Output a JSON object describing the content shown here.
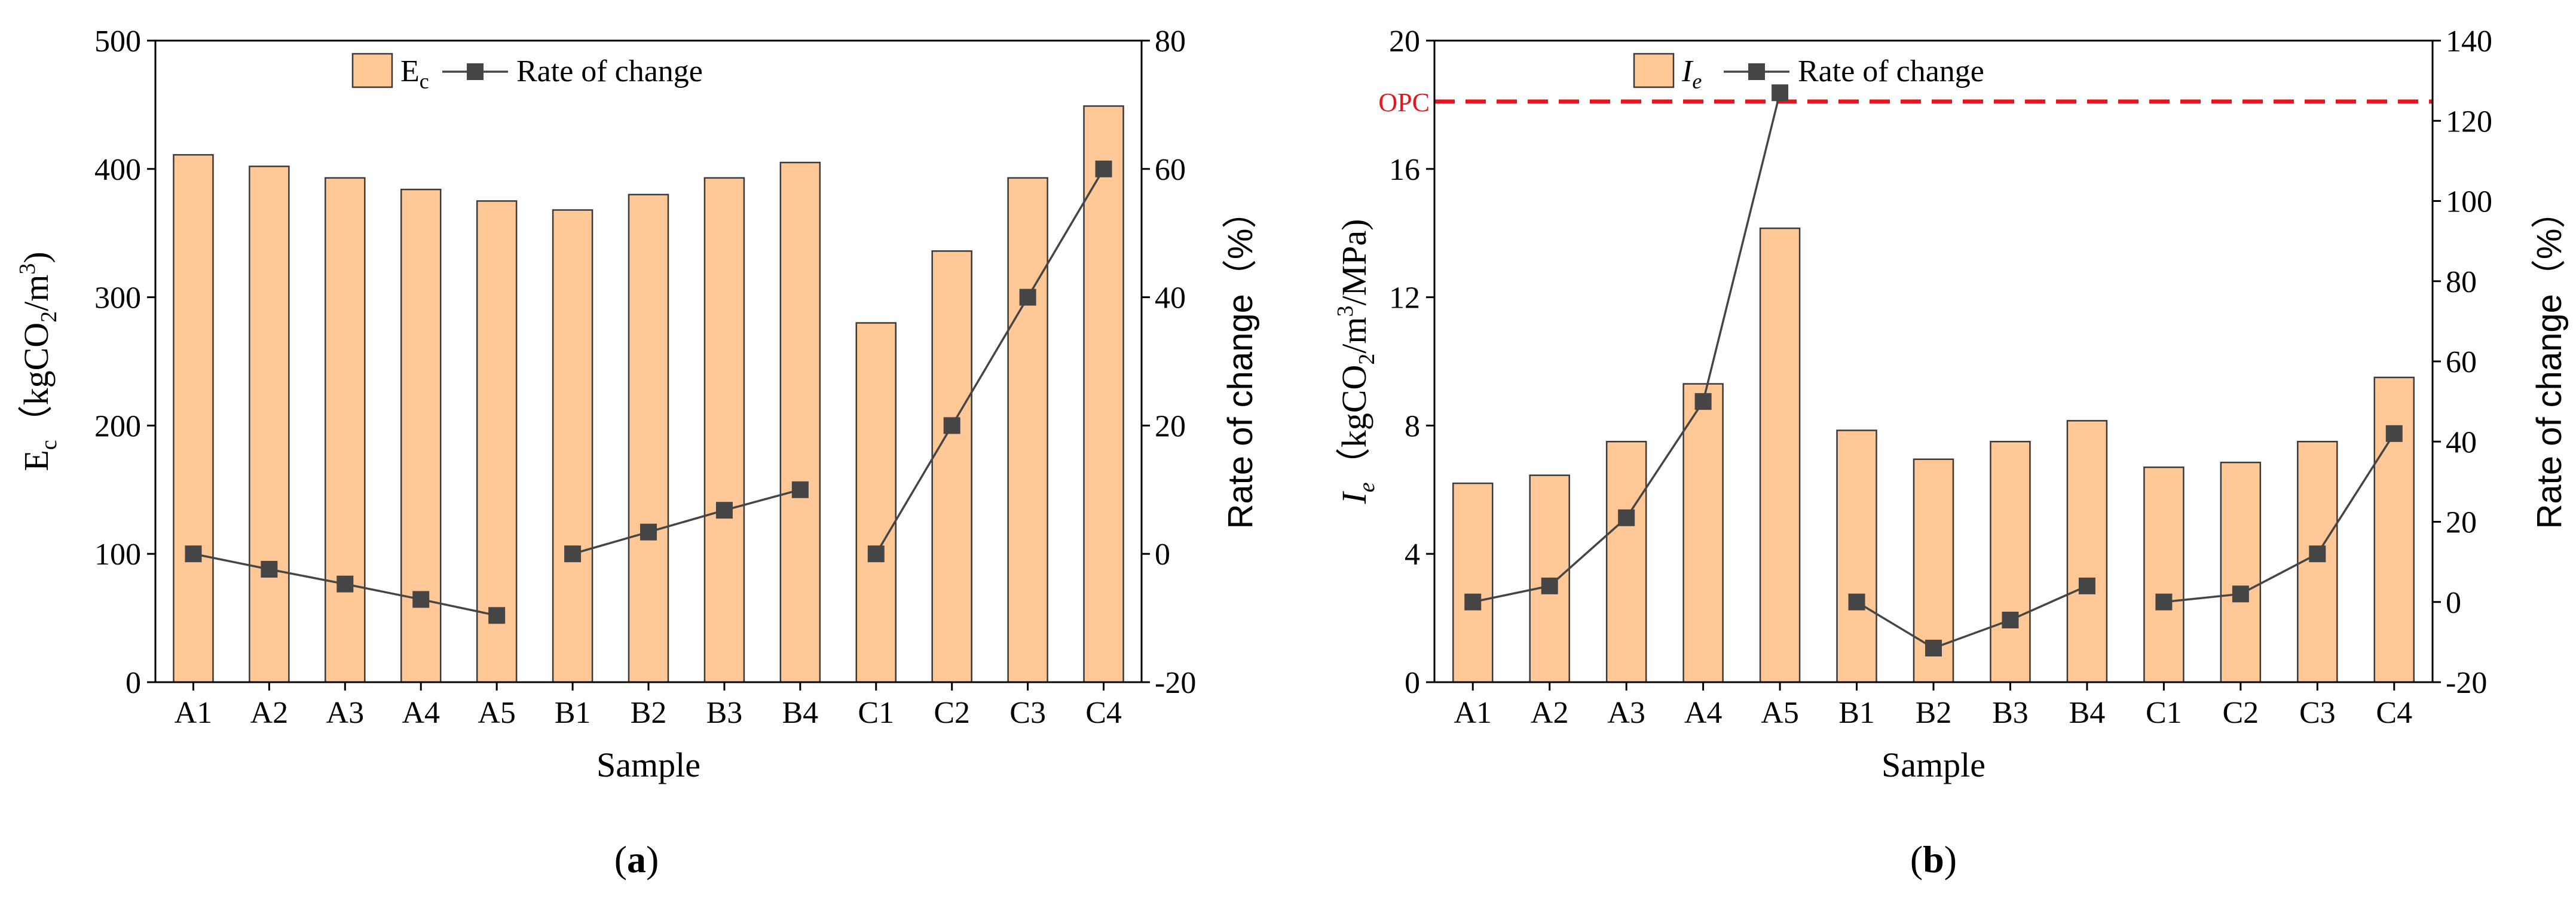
{
  "colors": {
    "bar_fill": "#FFC896",
    "bar_stroke": "#3a3a3a",
    "line": "#454545",
    "marker": "#454545",
    "axis": "#000000",
    "opc_line": "#E8141E",
    "opc_label": "#E8141E"
  },
  "chart_data": [
    {
      "type": "bar+line",
      "panel_label": "a",
      "categories": [
        "A1",
        "A2",
        "A3",
        "A4",
        "A5",
        "B1",
        "B2",
        "B3",
        "B4",
        "C1",
        "C2",
        "C3",
        "C4"
      ],
      "series": [
        {
          "name": "Ec",
          "legend_label": "E",
          "legend_sub": "c",
          "type": "bar",
          "axis": "left",
          "values": [
            411,
            402,
            393,
            384,
            375,
            368,
            380,
            393,
            405,
            280,
            336,
            393,
            449
          ]
        },
        {
          "name": "Rate of change",
          "legend_label": "Rate of change",
          "type": "line",
          "axis": "right",
          "values": [
            0,
            -2.4,
            -4.7,
            -7.1,
            -9.6,
            0,
            3.4,
            6.8,
            10.0,
            0,
            20.0,
            40.0,
            60.0
          ],
          "segments": [
            [
              0,
              4
            ],
            [
              5,
              8
            ],
            [
              9,
              12
            ]
          ]
        }
      ],
      "xlabel": "Sample",
      "ylabel_left": {
        "main": "E",
        "sub1": "c",
        "paren_open": "（",
        "unit_a": "kgCO",
        "sub2": "2",
        "unit_b": "/m",
        "sup": "3",
        "paren_close": ")"
      },
      "ylabel_right": "Rate of change（%）",
      "ylim_left": [
        0,
        500
      ],
      "yticks_left": [
        0,
        100,
        200,
        300,
        400,
        500
      ],
      "ylim_right": [
        -20,
        80
      ],
      "yticks_right": [
        -20,
        0,
        20,
        40,
        60,
        80
      ],
      "legend_position": "top-center",
      "grid": false
    },
    {
      "type": "bar+line",
      "panel_label": "b",
      "categories": [
        "A1",
        "A2",
        "A3",
        "A4",
        "A5",
        "B1",
        "B2",
        "B3",
        "B4",
        "C1",
        "C2",
        "C3",
        "C4"
      ],
      "series": [
        {
          "name": "Ie",
          "legend_label": "I",
          "legend_sub": "e",
          "type": "bar",
          "axis": "left",
          "values": [
            6.2,
            6.45,
            7.5,
            9.3,
            14.15,
            7.85,
            6.95,
            7.5,
            8.15,
            6.7,
            6.85,
            7.5,
            9.5
          ]
        },
        {
          "name": "Rate of change",
          "legend_label": "Rate of change",
          "type": "line",
          "axis": "right",
          "values": [
            0,
            4,
            21,
            50,
            127,
            0,
            -11.5,
            -4.5,
            4,
            0,
            2,
            12,
            42
          ],
          "segments": [
            [
              0,
              4
            ],
            [
              5,
              8
            ],
            [
              9,
              12
            ]
          ]
        }
      ],
      "reference_line": {
        "label": "OPC",
        "value": 18.1,
        "axis": "left",
        "style": "dashed"
      },
      "xlabel": "Sample",
      "ylabel_left": {
        "main": "I",
        "sub1": "e",
        "paren_open": "（",
        "unit_a": "kgCO",
        "sub2": "2",
        "unit_b": "/m",
        "sup": "3",
        "unit_c": "/MPa",
        "paren_close": ")"
      },
      "ylabel_right": "Rate of change（%）",
      "ylim_left": [
        0,
        20
      ],
      "yticks_left": [
        0,
        4,
        8,
        12,
        16,
        20
      ],
      "ylim_right": [
        -20,
        140
      ],
      "yticks_right": [
        -20,
        0,
        20,
        40,
        60,
        80,
        100,
        120,
        140
      ],
      "legend_position": "top-center",
      "grid": false
    }
  ]
}
